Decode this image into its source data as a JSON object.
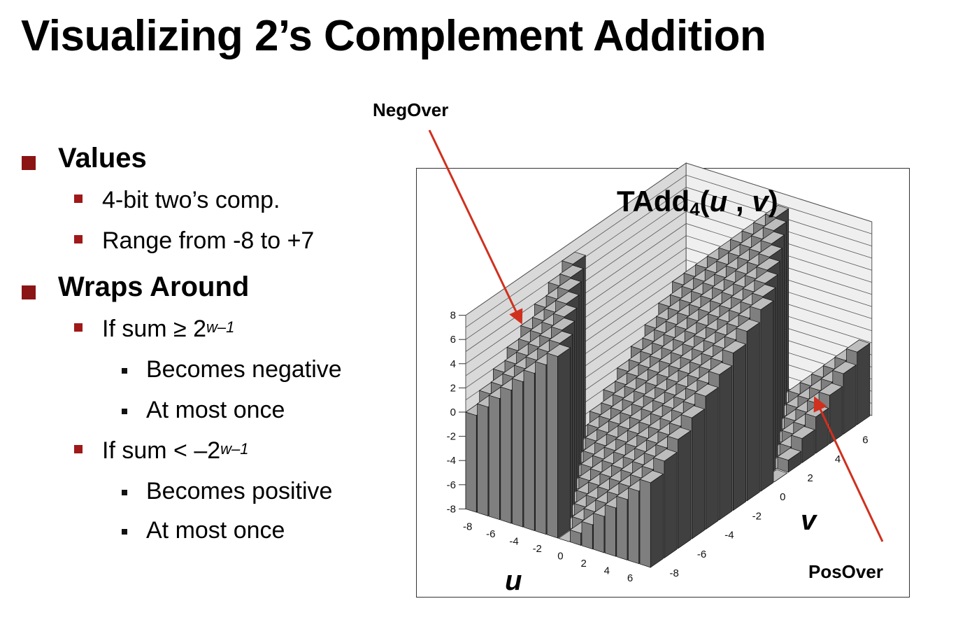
{
  "title": "Visualizing 2’s Complement Addition",
  "bullets": [
    {
      "text": "Values",
      "children": [
        {
          "text": "4-bit two’s comp."
        },
        {
          "text": "Range from -8 to +7"
        }
      ]
    },
    {
      "text": "Wraps Around",
      "children": [
        {
          "text_before": "If sum ≥ 2",
          "sup": "w–1",
          "children": [
            {
              "text": "Becomes negative"
            },
            {
              "text": "At most once"
            }
          ]
        },
        {
          "text_before": "If sum < –2",
          "sup": "w–1",
          "children": [
            {
              "text": "Becomes positive"
            },
            {
              "text": "At most once"
            }
          ]
        }
      ]
    }
  ],
  "callouts": {
    "neg": "NegOver",
    "pos": "PosOver"
  },
  "chart_data": {
    "type": "bar3d",
    "title_main": "TAdd",
    "title_sub": "4",
    "title_args": {
      "open": "(",
      "u": "u",
      "comma": " , ",
      "v": "v",
      "close": ")"
    },
    "xlabel": "u",
    "ylabel": "v",
    "u_ticks": [
      -8,
      -6,
      -4,
      -2,
      0,
      2,
      4,
      6
    ],
    "v_ticks": [
      -8,
      -6,
      -4,
      -2,
      0,
      2,
      4,
      6
    ],
    "z_ticks": [
      -8,
      -6,
      -4,
      -2,
      0,
      2,
      4,
      6,
      8
    ],
    "zlim": [
      -8,
      8
    ],
    "u_values": [
      -8,
      -7,
      -6,
      -5,
      -4,
      -3,
      -2,
      -1,
      0,
      1,
      2,
      3,
      4,
      5,
      6,
      7
    ],
    "v_values": [
      -8,
      -7,
      -6,
      -5,
      -4,
      -3,
      -2,
      -1,
      0,
      1,
      2,
      3,
      4,
      5,
      6,
      7
    ],
    "formula": "z = ((u + v + 8) mod 16) - 8",
    "colors": {
      "bar_front": "#7f7f7f",
      "bar_side": "#404040",
      "bar_top": "#bdbdbd",
      "back_wall": "#d9d9d9",
      "arrow": "#d0301e"
    }
  }
}
